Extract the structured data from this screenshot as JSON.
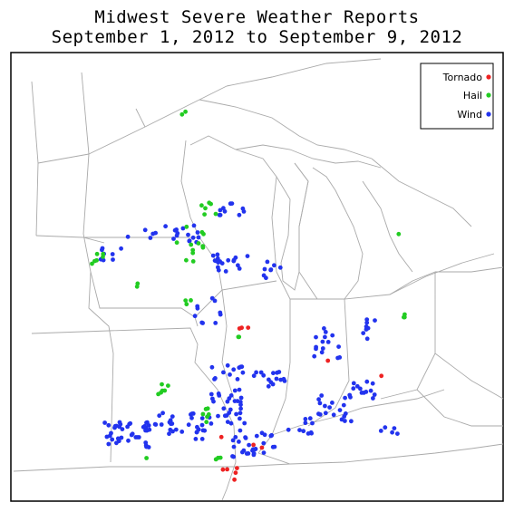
{
  "title_line1": "Midwest Severe Weather Reports",
  "title_line2": "September 1, 2012 to September 9, 2012",
  "colors": {
    "tornado": "#ee2222",
    "hail": "#22cc22",
    "wind": "#2233ee",
    "boundary": "#aaaaaa",
    "frame": "#000000"
  },
  "legend": [
    {
      "label": "Tornado",
      "key": "tornado"
    },
    {
      "label": "Hail",
      "key": "hail"
    },
    {
      "label": "Wind",
      "key": "wind"
    }
  ]
}
